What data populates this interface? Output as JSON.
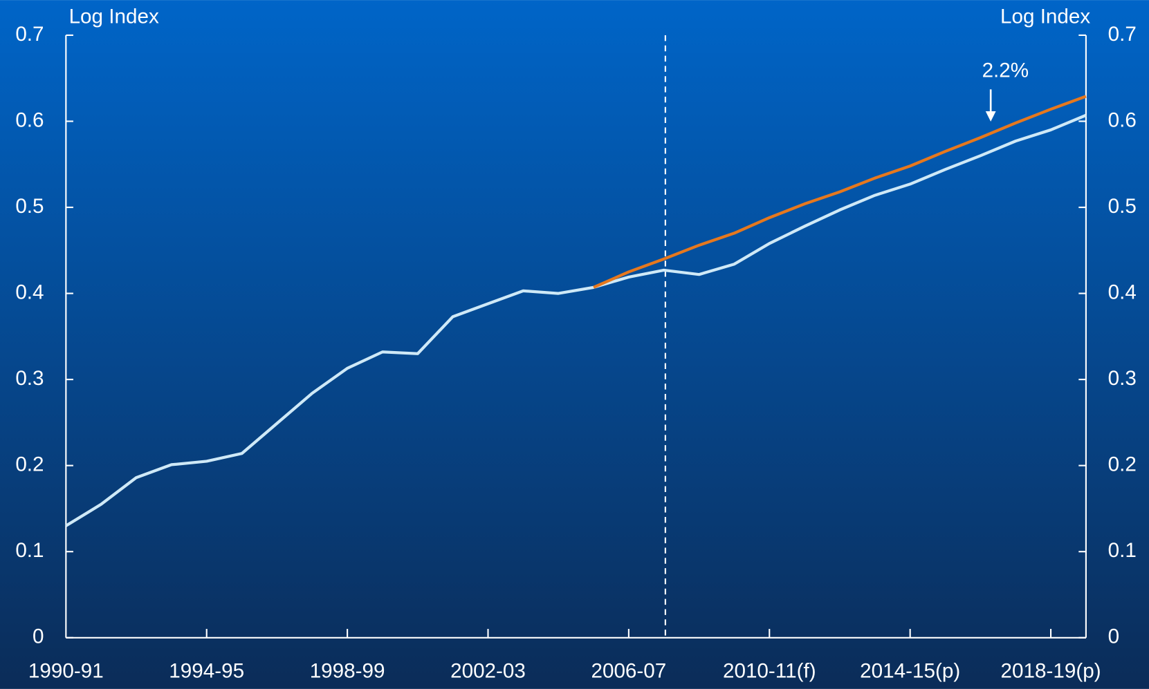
{
  "chart_data": {
    "type": "line",
    "y_label": "Log Index",
    "y2_label": "Log Index",
    "categories": [
      "1990-91",
      null,
      null,
      null,
      "1994-95",
      null,
      null,
      null,
      "1998-99",
      null,
      null,
      null,
      "2002-03",
      null,
      null,
      null,
      "2006-07",
      null,
      null,
      null,
      "2010-11(f)",
      null,
      null,
      null,
      "2014-15(p)",
      null,
      null,
      null,
      "2018-19(p)",
      null
    ],
    "series": [
      {
        "color": "#cfe9f7",
        "values": [
          0.13,
          0.155,
          0.186,
          0.201,
          0.205,
          0.214,
          0.249,
          0.284,
          0.313,
          0.332,
          0.33,
          0.373,
          0.388,
          0.403,
          0.4,
          0.407,
          0.419,
          0.427,
          0.422,
          0.434,
          0.458,
          0.478,
          0.497,
          0.514,
          0.527,
          0.544,
          0.56,
          0.577,
          0.59,
          0.607
        ]
      },
      {
        "color": "#e6781e",
        "values": [
          null,
          null,
          null,
          null,
          null,
          null,
          null,
          null,
          null,
          null,
          null,
          null,
          null,
          null,
          null,
          0.407,
          0.425,
          0.44,
          0.456,
          0.47,
          0.488,
          0.504,
          0.518,
          0.534,
          0.548,
          0.565,
          0.581,
          0.598,
          0.614,
          0.629
        ]
      }
    ],
    "annotations": [
      "2.2%"
    ],
    "ylim": [
      0,
      0.7
    ],
    "yticks": [
      0,
      0.1,
      0.2,
      0.3,
      0.4,
      0.5,
      0.6,
      0.7
    ],
    "y2lim": [
      0,
      0.7
    ],
    "y2ticks": [
      0,
      0.1,
      0.2,
      0.3,
      0.4,
      0.5,
      0.6,
      0.7
    ],
    "grid": false
  }
}
